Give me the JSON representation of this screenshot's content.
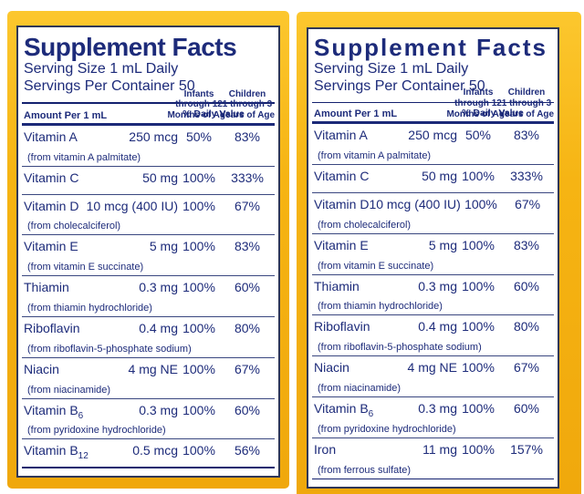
{
  "colors": {
    "navy_text": "#1d2b7a",
    "navy_bar": "#14216f",
    "yellow_frame": "#f6b413",
    "inner_border": "#2f3757",
    "background": "#ffffff"
  },
  "panels": [
    {
      "title": "Supplement Facts",
      "serving_size": "Serving Size 1 mL Daily",
      "servings_per_container": "Servings Per Container 50",
      "columns": {
        "daily_value": "% Daily Value",
        "amount": "Amount Per 1 mL",
        "infants": "Infants\nthrough 12\nMonths of Age",
        "children": "Children\n1 through 3\nYears of Age"
      },
      "rows": [
        {
          "name": "Vitamin A",
          "source": "(from vitamin A palmitate)",
          "amount": "250 mcg",
          "infants": "50%",
          "children": "83%"
        },
        {
          "name": "Vitamin C",
          "amount": "50 mg",
          "infants": "100%",
          "children": "333%"
        },
        {
          "name": "Vitamin D",
          "source": "(from cholecalciferol)",
          "amount": "10 mcg (400 IU)",
          "infants": "100%",
          "children": "67%"
        },
        {
          "name": "Vitamin E",
          "source": "(from vitamin E succinate)",
          "amount": "5 mg",
          "infants": "100%",
          "children": "83%"
        },
        {
          "name": "Thiamin",
          "source": "(from thiamin hydrochloride)",
          "amount": "0.3 mg",
          "infants": "100%",
          "children": "60%"
        },
        {
          "name": "Riboflavin",
          "source": "(from riboflavin-5-phosphate sodium)",
          "amount": "0.4 mg",
          "infants": "100%",
          "children": "80%"
        },
        {
          "name": "Niacin",
          "source": "(from niacinamide)",
          "amount": "4 mg NE",
          "infants": "100%",
          "children": "67%"
        },
        {
          "name": "Vitamin B",
          "nameSub": "6",
          "source": "(from  pyridoxine hydrochloride)",
          "amount": "0.3 mg",
          "infants": "100%",
          "children": "60%"
        },
        {
          "name": "Vitamin B",
          "nameSub": "12",
          "amount": "0.5 mcg",
          "infants": "100%",
          "children": "56%"
        }
      ]
    },
    {
      "title": "Supplement Facts",
      "serving_size": "Serving Size 1 mL Daily",
      "servings_per_container": "Servings Per Container 50",
      "columns": {
        "daily_value": "% Daily Value",
        "amount": "Amount Per 1 mL",
        "infants": "Infants\nthrough 12\nMonths of Age",
        "children": "Children\n1 through 3\nYears of Age"
      },
      "rows": [
        {
          "name": "Vitamin A",
          "source": "(from vitamin A palmitate)",
          "amount": "250 mcg",
          "infants": "50%",
          "children": "83%"
        },
        {
          "name": "Vitamin C",
          "amount": "50 mg",
          "infants": "100%",
          "children": "333%"
        },
        {
          "name": "Vitamin D",
          "source": "(from cholecalciferol)",
          "amount": "10 mcg (400 IU)",
          "infants": "100%",
          "children": "67%"
        },
        {
          "name": "Vitamin E",
          "source": "(from vitamin E succinate)",
          "amount": "5 mg",
          "infants": "100%",
          "children": "83%"
        },
        {
          "name": "Thiamin",
          "source": "(from thiamin hydrochloride)",
          "amount": "0.3 mg",
          "infants": "100%",
          "children": "60%"
        },
        {
          "name": "Riboflavin",
          "source": "(from riboflavin-5-phosphate sodium)",
          "amount": "0.4 mg",
          "infants": "100%",
          "children": "80%"
        },
        {
          "name": "Niacin",
          "source": "(from niacinamide)",
          "amount": "4 mg NE",
          "infants": "100%",
          "children": "67%"
        },
        {
          "name": "Vitamin B",
          "nameSub": "6",
          "source": "(from  pyridoxine hydrochloride)",
          "amount": "0.3 mg",
          "infants": "100%",
          "children": "60%"
        },
        {
          "name": "Iron",
          "source": "(from ferrous sulfate)",
          "amount": "11 mg",
          "infants": "100%",
          "children": "157%"
        }
      ]
    }
  ]
}
